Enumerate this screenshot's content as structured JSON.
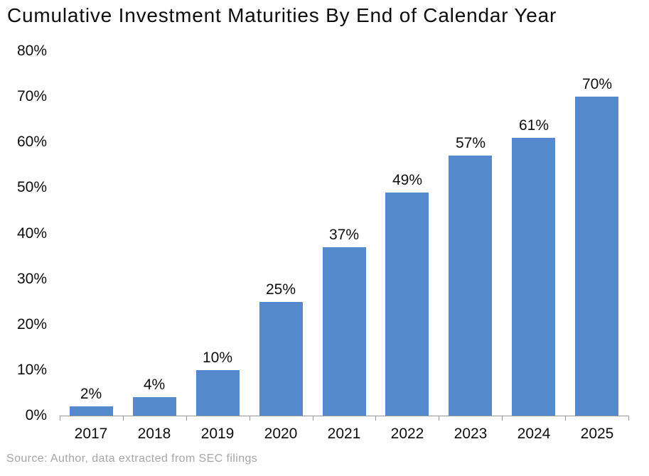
{
  "chart_data": {
    "type": "bar",
    "title": "Cumulative Investment Maturities By End of Calendar Year",
    "categories": [
      "2017",
      "2018",
      "2019",
      "2020",
      "2021",
      "2022",
      "2023",
      "2024",
      "2025"
    ],
    "values": [
      2,
      4,
      10,
      25,
      37,
      49,
      57,
      61,
      70
    ],
    "value_labels": [
      "2%",
      "4%",
      "10%",
      "25%",
      "37%",
      "49%",
      "57%",
      "61%",
      "70%"
    ],
    "xlabel": "",
    "ylabel": "",
    "ylim": [
      0,
      80
    ],
    "ytick_step": 10,
    "ytick_labels": [
      "0%",
      "10%",
      "20%",
      "30%",
      "40%",
      "50%",
      "60%",
      "70%",
      "80%"
    ],
    "grid": false,
    "legend": "none",
    "data_labels": "above bars",
    "colors": {
      "bar_fill": "#5589CD",
      "axis_line": "#999999",
      "text": "#0d0d0d"
    }
  },
  "source": {
    "text": "Source: Author, data extracted from SEC filings",
    "color": "#A6A6A6"
  }
}
